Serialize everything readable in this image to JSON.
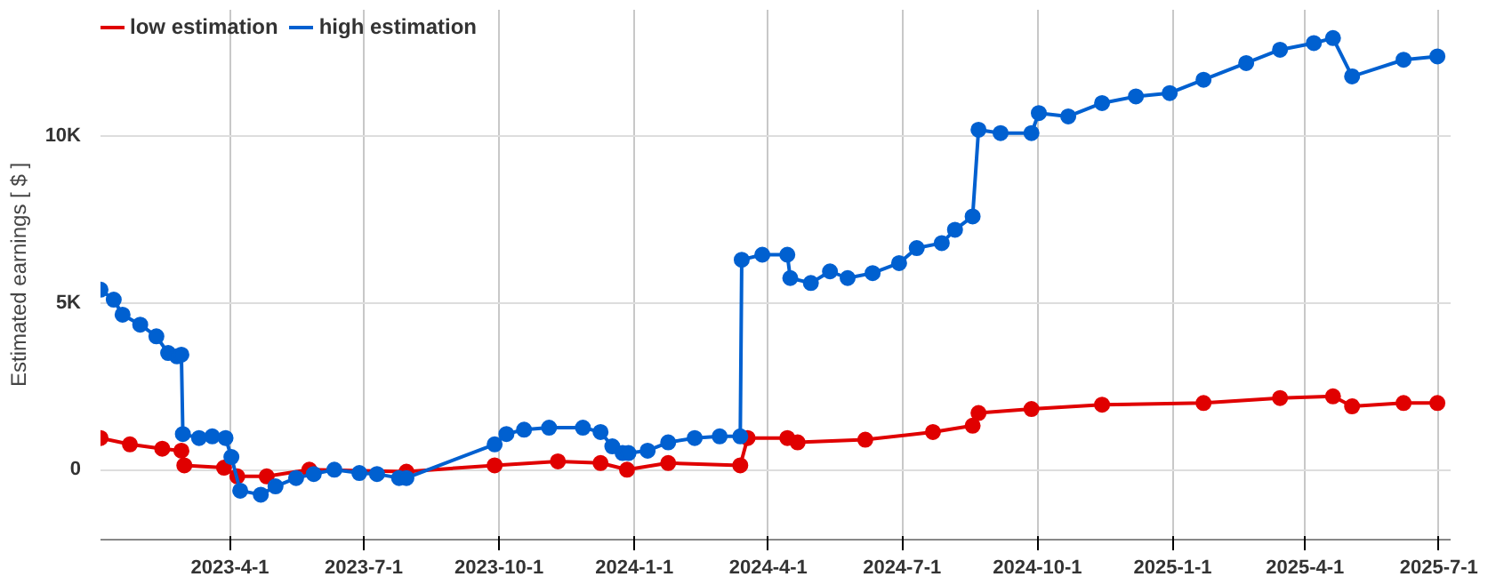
{
  "chart_data": {
    "type": "line",
    "ylabel": "Estimated earnings [ $ ]",
    "marker": "circle",
    "grid": true,
    "legend": "top left",
    "xlim": [
      "2023-01-03",
      "2025-07-09"
    ],
    "ylim": [
      -2100,
      13800
    ],
    "xticks": [
      {
        "value": "2023-04-01",
        "label": "2023-4-1"
      },
      {
        "value": "2023-07-01",
        "label": "2023-7-1"
      },
      {
        "value": "2023-10-01",
        "label": "2023-10-1"
      },
      {
        "value": "2024-01-01",
        "label": "2024-1-1"
      },
      {
        "value": "2024-04-01",
        "label": "2024-4-1"
      },
      {
        "value": "2024-07-01",
        "label": "2024-7-1"
      },
      {
        "value": "2024-10-01",
        "label": "2024-10-1"
      },
      {
        "value": "2025-01-01",
        "label": "2025-1-1"
      },
      {
        "value": "2025-04-01",
        "label": "2025-4-1"
      },
      {
        "value": "2025-07-01",
        "label": "2025-7-1"
      }
    ],
    "yticks": [
      0,
      {
        "value": 5000,
        "label": "5K"
      },
      {
        "value": 10000,
        "label": "10K"
      }
    ],
    "series": [
      {
        "name": "low estimation",
        "color": "#e00000",
        "x": [
          "2023-01-03",
          "2023-01-23",
          "2023-02-14",
          "2023-02-27",
          "2023-03-01",
          "2023-03-28",
          "2023-04-06",
          "2023-04-26",
          "2023-05-25",
          "2023-07-30",
          "2023-09-28",
          "2023-11-10",
          "2023-12-09",
          "2023-12-27",
          "2024-01-24",
          "2024-03-13",
          "2024-03-18",
          "2024-04-14",
          "2024-04-21",
          "2024-06-06",
          "2024-07-22",
          "2024-08-18",
          "2024-08-22",
          "2024-09-27",
          "2024-11-14",
          "2025-01-22",
          "2025-03-15",
          "2025-04-20",
          "2025-05-03",
          "2025-06-07",
          "2025-06-30"
        ],
        "values": [
          950,
          760,
          630,
          570,
          130,
          60,
          -200,
          -200,
          0,
          -60,
          130,
          250,
          200,
          0,
          200,
          130,
          950,
          950,
          820,
          900,
          1130,
          1320,
          1700,
          1820,
          1950,
          2000,
          2150,
          2200,
          1900,
          2000,
          2000
        ]
      },
      {
        "name": "high estimation",
        "color": "#0060d0",
        "x": [
          "2023-01-03",
          "2023-01-12",
          "2023-01-18",
          "2023-01-30",
          "2023-02-10",
          "2023-02-18",
          "2023-02-24",
          "2023-02-27",
          "2023-02-28",
          "2023-03-11",
          "2023-03-20",
          "2023-03-29",
          "2023-04-02",
          "2023-04-08",
          "2023-04-22",
          "2023-05-02",
          "2023-05-16",
          "2023-05-28",
          "2023-06-11",
          "2023-06-28",
          "2023-07-10",
          "2023-07-25",
          "2023-07-30",
          "2023-09-28",
          "2023-10-06",
          "2023-10-18",
          "2023-11-04",
          "2023-11-27",
          "2023-12-09",
          "2023-12-17",
          "2023-12-24",
          "2023-12-28",
          "2024-01-10",
          "2024-01-24",
          "2024-02-11",
          "2024-02-28",
          "2024-03-13",
          "2024-03-14",
          "2024-03-28",
          "2024-04-14",
          "2024-04-16",
          "2024-04-30",
          "2024-05-13",
          "2024-05-25",
          "2024-06-11",
          "2024-06-29",
          "2024-07-11",
          "2024-07-28",
          "2024-08-06",
          "2024-08-18",
          "2024-08-22",
          "2024-09-06",
          "2024-09-27",
          "2024-10-02",
          "2024-10-22",
          "2024-11-14",
          "2024-12-07",
          "2024-12-30",
          "2025-01-22",
          "2025-02-20",
          "2025-03-15",
          "2025-04-07",
          "2025-04-20",
          "2025-05-03",
          "2025-06-07",
          "2025-06-30"
        ],
        "values": [
          5400,
          5100,
          4650,
          4350,
          4000,
          3500,
          3400,
          3450,
          1070,
          950,
          1000,
          950,
          380,
          -630,
          -750,
          -500,
          -250,
          -130,
          0,
          -100,
          -130,
          -250,
          -250,
          760,
          1070,
          1200,
          1260,
          1260,
          1130,
          700,
          500,
          500,
          570,
          820,
          950,
          1000,
          1000,
          6300,
          6450,
          6450,
          5750,
          5600,
          5950,
          5750,
          5900,
          6200,
          6650,
          6800,
          7200,
          7600,
          10200,
          10100,
          10100,
          10700,
          10600,
          11000,
          11200,
          11300,
          11700,
          12200,
          12600,
          12800,
          12950,
          11800,
          12300,
          12400
        ]
      }
    ]
  }
}
